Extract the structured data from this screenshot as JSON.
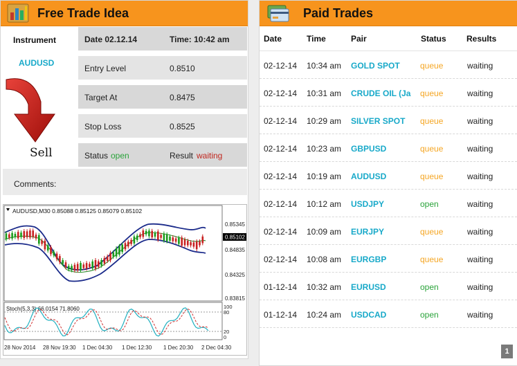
{
  "free_trade": {
    "title": "Free Trade Idea",
    "instrument_label": "Instrument",
    "instrument": "AUDUSD",
    "direction": "Sell",
    "date": "Date 02.12.14",
    "time": "Time: 10:42 am",
    "entry_label": "Entry Level",
    "entry_value": "0.8510",
    "target_label": "Target At",
    "target_value": "0.8475",
    "stop_label": "Stop Loss",
    "stop_value": "0.8525",
    "status_label": "Status",
    "status_value": "open",
    "result_label": "Result",
    "result_value": "waiting",
    "comments_label": "Comments:"
  },
  "chart": {
    "header": "AUDUSD,M30  0.85088 0.85125 0.85079 0.85102",
    "current_price": "0.85102",
    "y_ticks": [
      "0.85345",
      "0.84835",
      "0.84325",
      "0.83815"
    ],
    "stoch_label": "Stoch(5,3,3) 66.0154 71.8060",
    "stoch_ticks": [
      "100",
      "80",
      "20",
      "0"
    ],
    "x_ticks": [
      "28 Nov 2014",
      "28 Nov 19:30",
      "1 Dec 04:30",
      "1 Dec 12:30",
      "1 Dec 20:30",
      "2 Dec 04:30"
    ],
    "colors": {
      "bands": "#1a2a8a",
      "ma": "#2e8b2e",
      "bull": "#1a9a1a",
      "bear": "#c82020",
      "stoch_main": "#20b0c0",
      "stoch_signal": "#d03030"
    }
  },
  "paid_trades": {
    "title": "Paid Trades",
    "columns": [
      "Date",
      "Time",
      "Pair",
      "Status",
      "Results"
    ],
    "rows": [
      {
        "date": "02-12-14",
        "time": "10:34 am",
        "pair": "GOLD SPOT",
        "status": "queue",
        "result": "waiting"
      },
      {
        "date": "02-12-14",
        "time": "10:31 am",
        "pair": "CRUDE OIL (Ja",
        "status": "queue",
        "result": "waiting"
      },
      {
        "date": "02-12-14",
        "time": "10:29 am",
        "pair": "SILVER SPOT",
        "status": "queue",
        "result": "waiting"
      },
      {
        "date": "02-12-14",
        "time": "10:23 am",
        "pair": "GBPUSD",
        "status": "queue",
        "result": "waiting"
      },
      {
        "date": "02-12-14",
        "time": "10:19 am",
        "pair": "AUDUSD",
        "status": "queue",
        "result": "waiting"
      },
      {
        "date": "02-12-14",
        "time": "10:12 am",
        "pair": "USDJPY",
        "status": "open",
        "result": "waiting"
      },
      {
        "date": "02-12-14",
        "time": "10:09 am",
        "pair": "EURJPY",
        "status": "queue",
        "result": "waiting"
      },
      {
        "date": "02-12-14",
        "time": "10:08 am",
        "pair": "EURGBP",
        "status": "queue",
        "result": "waiting"
      },
      {
        "date": "01-12-14",
        "time": "10:32 am",
        "pair": "EURUSD",
        "status": "open",
        "result": "waiting"
      },
      {
        "date": "01-12-14",
        "time": "10:24 am",
        "pair": "USDCAD",
        "status": "open",
        "result": "waiting"
      }
    ],
    "page": "1"
  },
  "icons": {
    "free_trade": "bar-chart-icon",
    "paid_trades": "credit-card-icon"
  }
}
